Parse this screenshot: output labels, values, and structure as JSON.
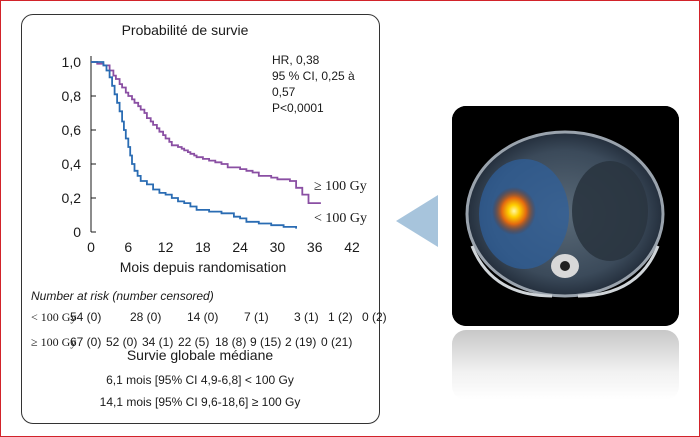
{
  "chart_data": {
    "type": "line",
    "title": "Probabilité de survie",
    "xlabel": "Mois depuis randomisation",
    "ylabel": "",
    "xlim": [
      0,
      42
    ],
    "ylim": [
      0,
      1.0
    ],
    "xticks": [
      "0",
      "6",
      "12",
      "18",
      "24",
      "30",
      "36",
      "42"
    ],
    "yticks": [
      "0",
      "0,2",
      "0,4",
      "0,6",
      "0,8",
      "1,0"
    ],
    "series": [
      {
        "name": "≥ 100 Gy",
        "color": "#8a4fa3",
        "points": [
          [
            0,
            1.0
          ],
          [
            1,
            0.99
          ],
          [
            2,
            0.98
          ],
          [
            3,
            0.95
          ],
          [
            3.6,
            0.92
          ],
          [
            4,
            0.9
          ],
          [
            4.6,
            0.87
          ],
          [
            5,
            0.85
          ],
          [
            5.6,
            0.82
          ],
          [
            6,
            0.8
          ],
          [
            6.6,
            0.78
          ],
          [
            7,
            0.76
          ],
          [
            7.6,
            0.74
          ],
          [
            8,
            0.72
          ],
          [
            8.6,
            0.7
          ],
          [
            9,
            0.67
          ],
          [
            9.6,
            0.65
          ],
          [
            10,
            0.63
          ],
          [
            10.6,
            0.61
          ],
          [
            11,
            0.59
          ],
          [
            11.6,
            0.57
          ],
          [
            12,
            0.55
          ],
          [
            12.6,
            0.53
          ],
          [
            13,
            0.51
          ],
          [
            14,
            0.5
          ],
          [
            14.6,
            0.49
          ],
          [
            15,
            0.48
          ],
          [
            15.6,
            0.47
          ],
          [
            16,
            0.46
          ],
          [
            16.6,
            0.45
          ],
          [
            17,
            0.44
          ],
          [
            18,
            0.43
          ],
          [
            19,
            0.42
          ],
          [
            20,
            0.41
          ],
          [
            21,
            0.4
          ],
          [
            22,
            0.38
          ],
          [
            24,
            0.37
          ],
          [
            25,
            0.36
          ],
          [
            26,
            0.35
          ],
          [
            27,
            0.33
          ],
          [
            29,
            0.32
          ],
          [
            30,
            0.31
          ],
          [
            32,
            0.3
          ],
          [
            33,
            0.26
          ],
          [
            34,
            0.22
          ],
          [
            35,
            0.17
          ],
          [
            37,
            0.17
          ]
        ]
      },
      {
        "name": "< 100 Gy",
        "color": "#2a6cb3",
        "points": [
          [
            0,
            1.0
          ],
          [
            2,
            0.98
          ],
          [
            2.5,
            0.95
          ],
          [
            3,
            0.91
          ],
          [
            3.4,
            0.86
          ],
          [
            3.8,
            0.81
          ],
          [
            4.2,
            0.76
          ],
          [
            4.6,
            0.71
          ],
          [
            5,
            0.65
          ],
          [
            5.3,
            0.6
          ],
          [
            5.6,
            0.55
          ],
          [
            6,
            0.5
          ],
          [
            6.3,
            0.45
          ],
          [
            6.6,
            0.4
          ],
          [
            7,
            0.36
          ],
          [
            7.5,
            0.33
          ],
          [
            8,
            0.3
          ],
          [
            9,
            0.28
          ],
          [
            10,
            0.25
          ],
          [
            11,
            0.23
          ],
          [
            12,
            0.22
          ],
          [
            13,
            0.2
          ],
          [
            14,
            0.18
          ],
          [
            15,
            0.17
          ],
          [
            16,
            0.15
          ],
          [
            17,
            0.13
          ],
          [
            19,
            0.12
          ],
          [
            21,
            0.11
          ],
          [
            23,
            0.09
          ],
          [
            24,
            0.08
          ],
          [
            25,
            0.06
          ],
          [
            27,
            0.05
          ],
          [
            29,
            0.04
          ],
          [
            31,
            0.03
          ],
          [
            33,
            0.02
          ]
        ]
      }
    ],
    "annotation": [
      "HR, 0,38",
      "95 % CI, 0,25 à",
      "0,57",
      "P<0,0001"
    ]
  },
  "risk_table": {
    "header": "Number at risk (number censored)",
    "rows": [
      {
        "group": "< 100 Gy",
        "cells": [
          "54 (0)",
          "28  (0)",
          "14  (0)",
          "7  (1)",
          "3  (1)",
          "1  (2)",
          "0 (2)"
        ]
      },
      {
        "group": "≥ 100 Gy",
        "cells": [
          "67 (0)",
          "52 (0)",
          "34 (1)",
          "22 (5)",
          "18 (8)",
          "9 (15)",
          "2 (19)",
          "0 (21)"
        ]
      }
    ]
  },
  "median": {
    "title": "Survie globale médiane",
    "rows": [
      "6,1 mois [95% CI 4,9-6,8] < 100 Gy",
      "14,1 mois [95% CI 9,6-18,6] ≥ 100 Gy"
    ]
  },
  "colors": {
    "frame": "#d2232a",
    "arrow": "#a7c4dc"
  }
}
